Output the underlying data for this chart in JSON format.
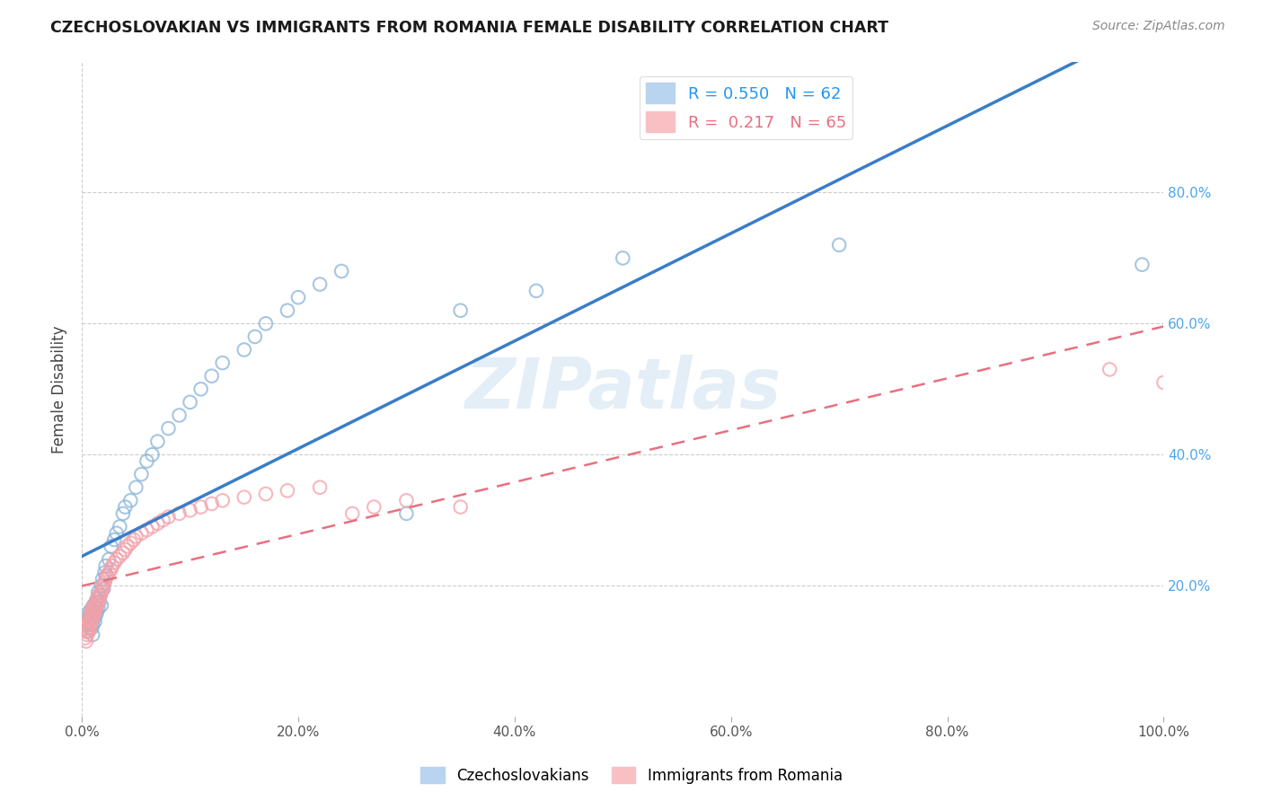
{
  "title": "CZECHOSLOVAKIAN VS IMMIGRANTS FROM ROMANIA FEMALE DISABILITY CORRELATION CHART",
  "source": "Source: ZipAtlas.com",
  "ylabel": "Female Disability",
  "series1_label": "Czechoslovakians",
  "series2_label": "Immigrants from Romania",
  "series1_color": "#8ab4d8",
  "series2_color": "#f4a0a8",
  "series1_R": 0.55,
  "series1_N": 62,
  "series2_R": 0.217,
  "series2_N": 65,
  "xlim": [
    0,
    1.0
  ],
  "ylim": [
    0,
    1.0
  ],
  "xticks": [
    0.0,
    0.2,
    0.4,
    0.6,
    0.8,
    1.0
  ],
  "yticks": [
    0.2,
    0.4,
    0.6,
    0.8
  ],
  "xticklabels": [
    "0.0%",
    "20.0%",
    "40.0%",
    "60.0%",
    "80.0%",
    "100.0%"
  ],
  "yticklabels": [
    "20.0%",
    "40.0%",
    "60.0%",
    "80.0%"
  ],
  "background_color": "#ffffff",
  "grid_color": "#cccccc",
  "watermark": "ZIPatlas",
  "series1_x": [
    0.005,
    0.005,
    0.007,
    0.007,
    0.008,
    0.008,
    0.009,
    0.009,
    0.01,
    0.01,
    0.01,
    0.011,
    0.011,
    0.012,
    0.012,
    0.013,
    0.013,
    0.014,
    0.014,
    0.015,
    0.015,
    0.016,
    0.017,
    0.018,
    0.018,
    0.019,
    0.02,
    0.021,
    0.022,
    0.023,
    0.025,
    0.027,
    0.03,
    0.032,
    0.035,
    0.038,
    0.04,
    0.045,
    0.05,
    0.055,
    0.06,
    0.065,
    0.07,
    0.08,
    0.09,
    0.1,
    0.11,
    0.12,
    0.13,
    0.15,
    0.16,
    0.17,
    0.19,
    0.2,
    0.22,
    0.24,
    0.3,
    0.35,
    0.42,
    0.5,
    0.7,
    0.98
  ],
  "series1_y": [
    0.13,
    0.145,
    0.155,
    0.16,
    0.14,
    0.15,
    0.135,
    0.165,
    0.125,
    0.14,
    0.155,
    0.15,
    0.17,
    0.145,
    0.16,
    0.155,
    0.175,
    0.16,
    0.18,
    0.165,
    0.19,
    0.175,
    0.185,
    0.17,
    0.2,
    0.21,
    0.195,
    0.22,
    0.23,
    0.215,
    0.24,
    0.26,
    0.27,
    0.28,
    0.29,
    0.31,
    0.32,
    0.33,
    0.35,
    0.37,
    0.39,
    0.4,
    0.42,
    0.44,
    0.46,
    0.48,
    0.5,
    0.52,
    0.54,
    0.56,
    0.58,
    0.6,
    0.62,
    0.64,
    0.66,
    0.68,
    0.31,
    0.62,
    0.65,
    0.7,
    0.72,
    0.69
  ],
  "series2_x": [
    0.003,
    0.004,
    0.004,
    0.005,
    0.005,
    0.005,
    0.006,
    0.006,
    0.007,
    0.007,
    0.008,
    0.008,
    0.009,
    0.009,
    0.01,
    0.01,
    0.011,
    0.011,
    0.012,
    0.013,
    0.013,
    0.014,
    0.015,
    0.015,
    0.016,
    0.017,
    0.018,
    0.019,
    0.02,
    0.021,
    0.022,
    0.023,
    0.025,
    0.027,
    0.028,
    0.03,
    0.032,
    0.035,
    0.038,
    0.04,
    0.042,
    0.045,
    0.048,
    0.05,
    0.055,
    0.06,
    0.065,
    0.07,
    0.075,
    0.08,
    0.09,
    0.1,
    0.11,
    0.12,
    0.13,
    0.15,
    0.17,
    0.19,
    0.22,
    0.25,
    0.27,
    0.3,
    0.35,
    0.95,
    1.0
  ],
  "series2_y": [
    0.12,
    0.115,
    0.13,
    0.125,
    0.135,
    0.14,
    0.13,
    0.145,
    0.135,
    0.15,
    0.14,
    0.155,
    0.145,
    0.16,
    0.15,
    0.165,
    0.155,
    0.17,
    0.16,
    0.165,
    0.175,
    0.17,
    0.175,
    0.185,
    0.18,
    0.185,
    0.19,
    0.195,
    0.2,
    0.205,
    0.21,
    0.215,
    0.22,
    0.225,
    0.23,
    0.235,
    0.24,
    0.245,
    0.25,
    0.255,
    0.26,
    0.265,
    0.27,
    0.275,
    0.28,
    0.285,
    0.29,
    0.295,
    0.3,
    0.305,
    0.31,
    0.315,
    0.32,
    0.325,
    0.33,
    0.335,
    0.34,
    0.345,
    0.35,
    0.31,
    0.32,
    0.33,
    0.32,
    0.53,
    0.51
  ]
}
